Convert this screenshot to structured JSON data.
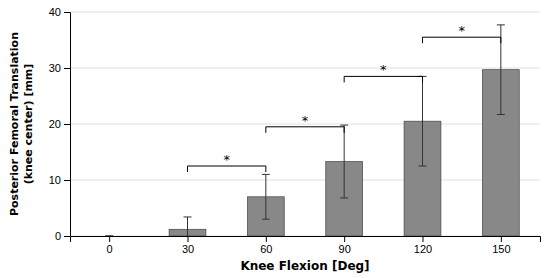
{
  "chart_data": {
    "type": "bar",
    "xlabel": "Knee Flexion [Deg]",
    "ylabel": [
      "Posterior Femoral Translation",
      "(knee center) [mm]"
    ],
    "x": [
      0,
      30,
      60,
      90,
      120,
      150
    ],
    "values": [
      0.0,
      1.2,
      7.0,
      13.3,
      20.5,
      29.7
    ],
    "errors": [
      0.0,
      2.2,
      4.0,
      6.5,
      8.0,
      8.0
    ],
    "color": "#888888",
    "xlim": [
      -15,
      165
    ],
    "xticks": [
      0,
      30,
      60,
      90,
      120,
      150
    ],
    "ylim": [
      0,
      40
    ],
    "yticks": [
      0,
      10,
      20,
      30,
      40
    ],
    "grid": true,
    "brackets": [
      {
        "x1": 30,
        "x2": 60,
        "y": 12.5,
        "label": "*"
      },
      {
        "x1": 60,
        "x2": 90,
        "y": 19.5,
        "label": "*"
      },
      {
        "x1": 90,
        "x2": 120,
        "y": 28.5,
        "label": "*"
      },
      {
        "x1": 120,
        "x2": 150,
        "y": 35.5,
        "label": "*"
      }
    ]
  }
}
